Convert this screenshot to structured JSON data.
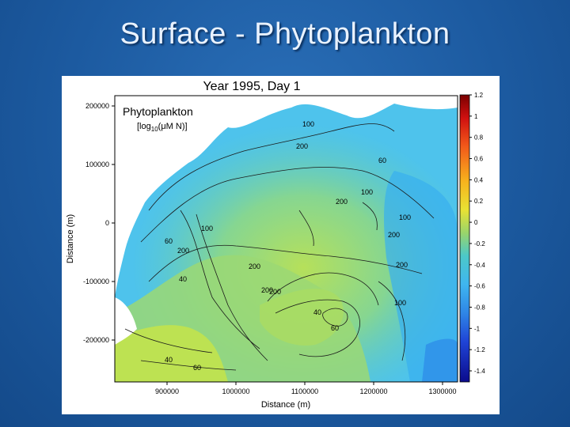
{
  "slide": {
    "title": "Surface - Phytoplankton"
  },
  "figure": {
    "title": "Year 1995,  Day    1",
    "variable": "Phytoplankton",
    "units": "[log10(μM N)]",
    "units_prefix": "[log",
    "units_sub": "10",
    "units_suffix": "(μM N)]",
    "xlabel": "Distance (m)",
    "ylabel": "Distance (m)",
    "x_ticks": [
      "900000",
      "1000000",
      "1100000",
      "1200000",
      "1300000"
    ],
    "y_ticks": [
      "200000",
      "100000",
      "0",
      "-100000",
      "-200000"
    ],
    "colorbar_ticks": [
      "1.2",
      "1",
      "0.8",
      "0.6",
      "0.4",
      "0.2",
      "0",
      "-0.2",
      "-0.4",
      "-0.6",
      "-0.8",
      "-1",
      "-1.2",
      "-1.4"
    ],
    "contour_labels": [
      "100",
      "200",
      "200",
      "200",
      "200",
      "200",
      "100",
      "100",
      "200",
      "100",
      "60",
      "40",
      "60",
      "40",
      "60",
      "200",
      "60",
      "200",
      "100",
      "40"
    ],
    "colors": {
      "land": "#ffffff",
      "deep_water": "#3fb6f0",
      "shelf_water": "#7fd28a",
      "coastal": "#c6e34a"
    }
  }
}
